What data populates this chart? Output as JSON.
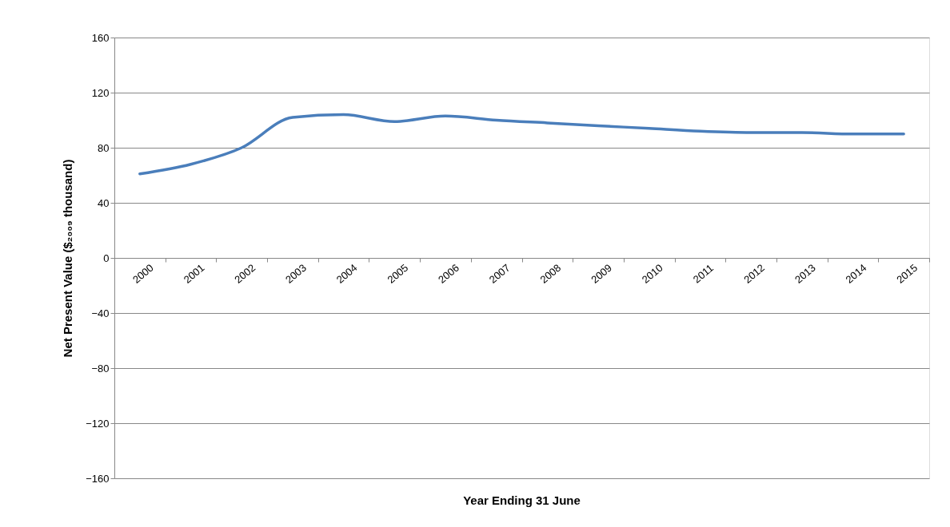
{
  "chart_data": {
    "type": "line",
    "xlabel": "Year Ending 31 June",
    "ylabel": "Net Present Value ($₂₀₀₉ thousand)",
    "categories": [
      "2000",
      "2001",
      "2002",
      "2003",
      "2004",
      "2005",
      "2006",
      "2007",
      "2008",
      "2009",
      "2010",
      "2011",
      "2012",
      "2013",
      "2014",
      "2015"
    ],
    "series": [
      {
        "color": "#4a7ebb",
        "values": [
          61,
          68,
          80,
          102,
          104,
          99,
          103,
          100,
          98,
          96,
          94,
          92,
          91,
          91,
          90,
          90
        ]
      }
    ],
    "ylim": [
      -160,
      160
    ],
    "yticks": [
      -160,
      -120,
      -80,
      -40,
      0,
      40,
      80,
      120,
      160
    ],
    "grid": "y",
    "line_style": "solid"
  }
}
